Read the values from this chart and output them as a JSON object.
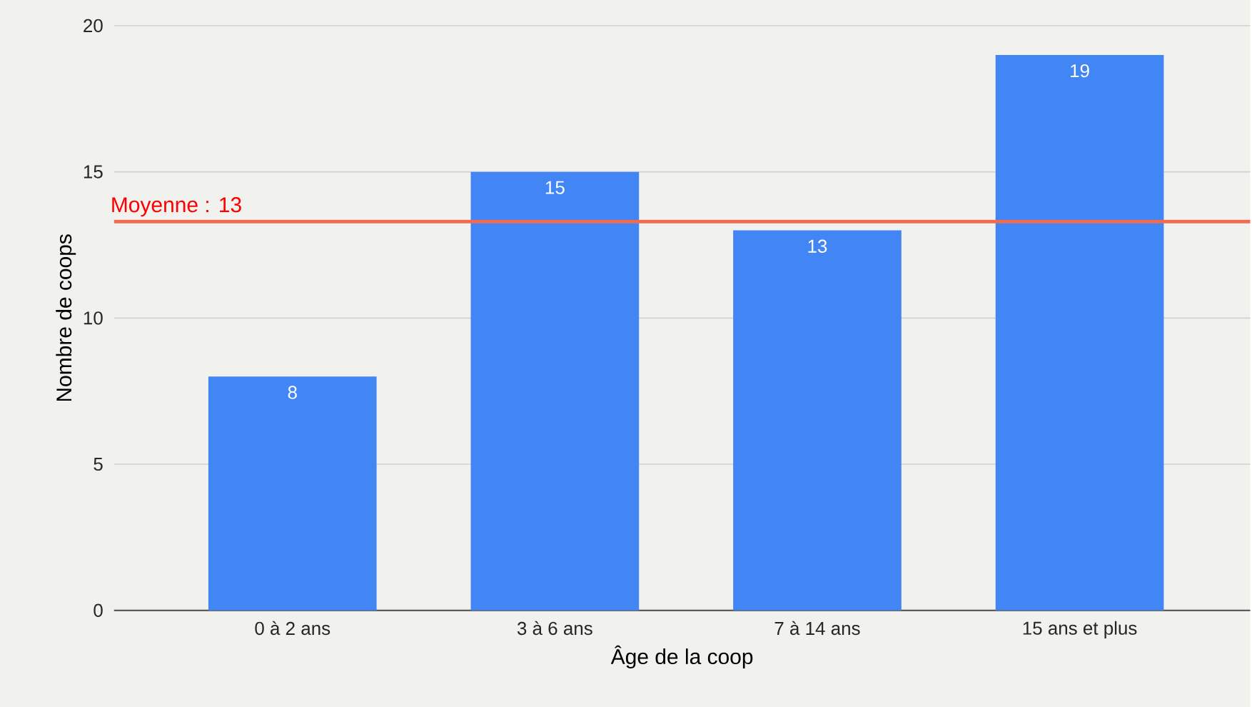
{
  "chart_data": {
    "type": "bar",
    "xlabel": "Âge de la coop",
    "ylabel": "Nombre de coops",
    "categories": [
      "0 à 2 ans",
      "3 à 6 ans",
      "7 à 14 ans",
      "15 ans et plus"
    ],
    "values": [
      8,
      15,
      13,
      19
    ],
    "color": "#4285f4",
    "ylim": [
      0,
      20
    ],
    "yticks": [
      0,
      5,
      10,
      15,
      20
    ],
    "grid": "y",
    "data_labels": true,
    "ref_lines": [
      {
        "axis": "y",
        "value": 13.3,
        "label": "Moyenne : 13",
        "color": "#f26b4e"
      }
    ]
  }
}
